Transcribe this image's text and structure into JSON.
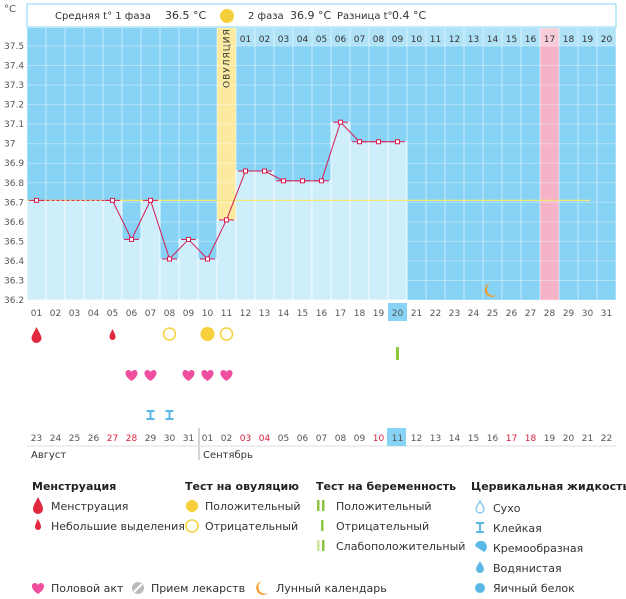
{
  "header": {
    "unit": "°C",
    "phase1_label": "Средняя t° 1 фаза",
    "phase1_value": "36.5 °C",
    "phase2_label": "2 фаза",
    "phase2_value": "36.9 °C",
    "diff_label": "Разница t°",
    "diff_value": "0.4 °C",
    "ovulation_label": "ОВУЛЯЦИЯ"
  },
  "colors": {
    "phase1_bg": "#86d3f5",
    "phase2_bg": "#86d3f5",
    "ovulation": "#fbeaa0",
    "highlight_day": "#f5b3c7",
    "bar_fill": "#cfeefc",
    "line": "#d61d53",
    "coverline": "#f2e87a",
    "menstruation": "#e2283c",
    "heart": "#ef4f9e",
    "test_positive": "#f5d03a",
    "preg_positive": "#8cc63f"
  },
  "chart_data": {
    "type": "line",
    "ylim": [
      36.2,
      37.5
    ],
    "yticks": [
      "36.2",
      "36.3",
      "36.4",
      "36.5",
      "36.6",
      "36.7",
      "36.8",
      "36.9",
      "37",
      "37.1",
      "37.2",
      "37.3",
      "37.4",
      "37.5"
    ],
    "ovulation_day": 11,
    "highlight_day": 28,
    "today_day": 20,
    "coverline": 36.71,
    "cycle_days": [
      "01",
      "02",
      "03",
      "04",
      "05",
      "06",
      "07",
      "08",
      "09",
      "10",
      "11",
      "12",
      "13",
      "14",
      "15",
      "16",
      "17",
      "18",
      "19",
      "20",
      "21",
      "22",
      "23",
      "24",
      "25",
      "26",
      "27",
      "28",
      "29",
      "30",
      "31"
    ],
    "top_days": [
      "01",
      "02",
      "03",
      "04",
      "05",
      "06",
      "07",
      "08",
      "09",
      "10",
      "11",
      "12",
      "13",
      "14",
      "15",
      "16",
      "17",
      "18",
      "19",
      "20"
    ],
    "calendar_dates": [
      "23",
      "24",
      "25",
      "26",
      "27",
      "28",
      "29",
      "30",
      "31",
      "01",
      "02",
      "03",
      "04",
      "05",
      "06",
      "07",
      "08",
      "09",
      "10",
      "11",
      "12",
      "13",
      "14",
      "15",
      "16",
      "17",
      "18",
      "19",
      "20",
      "21",
      "22"
    ],
    "calendar_red": [
      27,
      28,
      3,
      4,
      10,
      17,
      18
    ],
    "month_august": "Август",
    "month_september": "Сентябрь",
    "points": [
      {
        "day": 1,
        "temp": 36.71
      },
      {
        "day": 5,
        "temp": 36.71
      },
      {
        "day": 6,
        "temp": 36.51
      },
      {
        "day": 7,
        "temp": 36.71
      },
      {
        "day": 8,
        "temp": 36.41
      },
      {
        "day": 9,
        "temp": 36.51
      },
      {
        "day": 10,
        "temp": 36.41
      },
      {
        "day": 11,
        "temp": 36.61
      },
      {
        "day": 12,
        "temp": 36.86
      },
      {
        "day": 13,
        "temp": 36.86
      },
      {
        "day": 14,
        "temp": 36.81
      },
      {
        "day": 15,
        "temp": 36.81
      },
      {
        "day": 16,
        "temp": 36.81
      },
      {
        "day": 17,
        "temp": 37.11
      },
      {
        "day": 18,
        "temp": 37.01
      },
      {
        "day": 19,
        "temp": 37.01
      },
      {
        "day": 20,
        "temp": 37.01
      }
    ],
    "marks": {
      "menstruation": [
        1
      ],
      "light_bleeding": [
        5
      ],
      "ovulation_test_negative": [
        8,
        11
      ],
      "ovulation_test_positive": [
        10
      ],
      "pregnancy_test_positive": [
        20
      ],
      "intercourse": [
        6,
        7,
        9,
        10,
        11
      ],
      "sticky": [
        7,
        8
      ],
      "moon": [
        25
      ]
    }
  },
  "legend": {
    "menstruation": {
      "title": "Менструация",
      "items": [
        "Менструация",
        "Небольшие выделения"
      ]
    },
    "ovulation_test": {
      "title": "Тест на овуляцию",
      "items": [
        "Положительный",
        "Отрицательный"
      ]
    },
    "pregnancy_test": {
      "title": "Тест на беременность",
      "items": [
        "Положительный",
        "Отрицательный",
        "Слабоположительный"
      ]
    },
    "cervical": {
      "title": "Цервикальная жидкость",
      "items": [
        "Сухо",
        "Клейкая",
        "Кремообразная",
        "Водянистая",
        "Яичный белок"
      ]
    },
    "bottom": [
      "Половой акт",
      "Прием лекарств",
      "Лунный календарь"
    ]
  }
}
